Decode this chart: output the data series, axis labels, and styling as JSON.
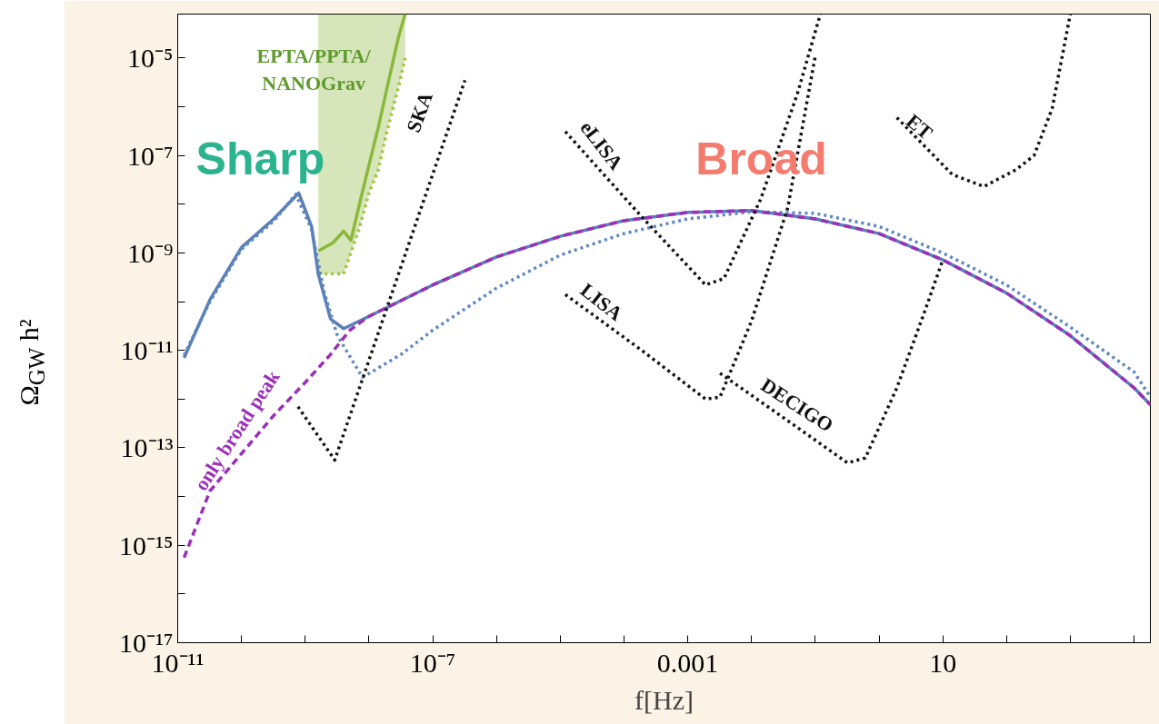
{
  "chart_data": {
    "type": "line",
    "xlabel": "f[Hz]",
    "ylabel": "Ω$_{GW}$ h²",
    "log": "xy",
    "grid": false,
    "xlim": [
      1e-11,
      18000.0
    ],
    "ylim": [
      1e-17,
      8e-05
    ],
    "xticks": [
      {
        "value": 1e-11,
        "label": "10⁻¹¹"
      },
      {
        "value": 1e-10,
        "label": null
      },
      {
        "value": 1e-09,
        "label": null
      },
      {
        "value": 1e-08,
        "label": null
      },
      {
        "value": 1e-07,
        "label": "10⁻⁷"
      },
      {
        "value": 1e-06,
        "label": null
      },
      {
        "value": 1e-05,
        "label": null
      },
      {
        "value": 0.0001,
        "label": null
      },
      {
        "value": 0.001,
        "label": "0.001"
      },
      {
        "value": 0.01,
        "label": null
      },
      {
        "value": 0.1,
        "label": null
      },
      {
        "value": 1,
        "label": null
      },
      {
        "value": 10,
        "label": "10"
      },
      {
        "value": 100,
        "label": null
      },
      {
        "value": 1000,
        "label": null
      },
      {
        "value": 10000,
        "label": null
      }
    ],
    "yticks": [
      {
        "value": 1e-17,
        "label": "10⁻¹⁷"
      },
      {
        "value": 1e-16,
        "label": null
      },
      {
        "value": 1e-15,
        "label": "10⁻¹⁵"
      },
      {
        "value": 1e-14,
        "label": null
      },
      {
        "value": 1e-13,
        "label": "10⁻¹³"
      },
      {
        "value": 1e-12,
        "label": null
      },
      {
        "value": 1e-11,
        "label": "10⁻¹¹"
      },
      {
        "value": 1e-10,
        "label": null
      },
      {
        "value": 1e-09,
        "label": "10⁻⁹"
      },
      {
        "value": 1e-08,
        "label": null
      },
      {
        "value": 1e-07,
        "label": "10⁻⁷"
      },
      {
        "value": 1e-06,
        "label": null
      },
      {
        "value": 1e-05,
        "label": "10⁻⁵"
      }
    ],
    "series": [
      {
        "color": "#a8c840",
        "line_style": "dotted",
        "x": [
          1.6e-09,
          2.7e-09,
          4e-09,
          5.2e-09,
          7.2e-09,
          1e-08,
          1.4e-08,
          1.9e-08,
          2.9e-08,
          3.7e-08
        ],
        "values": [
          3.7e-10,
          3.7e-10,
          3.7e-10,
          1e-09,
          3.5e-09,
          1.7e-08,
          5e-08,
          3e-07,
          2.5e-06,
          1e-05
        ]
      },
      {
        "name": "EPTA/PPTA/\nNANOGrav",
        "color": "#8ab83a",
        "line_style": "solid",
        "x": [
          1.6e-09,
          2.7e-09,
          4e-09,
          5.2e-09,
          7.2e-09,
          1e-08,
          1.4e-08,
          1.9e-08,
          2.9e-08,
          3.7e-08
        ],
        "values": [
          1.1e-09,
          1.6e-09,
          2.8e-09,
          1.8e-09,
          1.1e-08,
          6.4e-08,
          3.8e-07,
          2.3e-06,
          2.7e-05,
          8e-05
        ],
        "lower": [
          3.7e-10,
          3.7e-10,
          3.7e-10,
          1e-09,
          3.5e-09,
          1.7e-08,
          5e-08,
          3e-07,
          2.5e-06,
          1e-05
        ],
        "upper": [
          8e-05,
          8e-05,
          8e-05,
          8e-05,
          8e-05,
          8e-05,
          8e-05,
          8e-05,
          8e-05,
          8e-05
        ]
      },
      {
        "color": "#5b7fb5",
        "line_style": "solid",
        "x": [
          1.26e-11,
          3.2e-11,
          1e-10,
          3.2e-10,
          7.9e-10,
          1.26e-09,
          1.6e-09,
          2.5e-09,
          4e-09,
          1e-08,
          1e-07,
          1e-06,
          1e-05,
          0.0001,
          0.001,
          0.01,
          0.1,
          1,
          10,
          100,
          1000,
          10000.0,
          18000.0
        ],
        "values": [
          7e-12,
          1.1e-10,
          1.3e-09,
          5e-09,
          1.7e-08,
          3.5e-09,
          3.7e-10,
          4.4e-11,
          2.8e-11,
          5e-11,
          2.2e-10,
          8.3e-10,
          2.2e-09,
          4.6e-09,
          6.8e-09,
          7.4e-09,
          5e-09,
          2.5e-09,
          7.2e-10,
          1.5e-10,
          2e-11,
          1.7e-12,
          7.7e-13
        ]
      },
      {
        "color": "#5b86c0",
        "line_style": "dotted",
        "x": [
          1.26e-11,
          3.2e-11,
          1e-10,
          3.2e-10,
          7.1e-10,
          1.26e-09,
          2e-09,
          3.2e-09,
          7.9e-09,
          3.2e-08,
          1e-07,
          1e-06,
          1e-05,
          0.0001,
          0.001,
          0.01,
          0.1,
          1,
          10,
          100,
          1000,
          10000.0,
          18000.0
        ],
        "values": [
          8e-12,
          1e-10,
          1.2e-09,
          4.5e-09,
          1.6e-08,
          3e-09,
          1.5e-10,
          2e-11,
          2.8e-12,
          8.3e-12,
          2.6e-11,
          1.9e-10,
          9e-10,
          2.5e-09,
          5e-09,
          7e-09,
          6.5e-09,
          3.5e-09,
          1e-09,
          2.2e-10,
          3e-11,
          3.6e-12,
          1.1e-12
        ]
      },
      {
        "name": "only broad peak",
        "color": "#9b30b8",
        "line_style": "dashed",
        "x": [
          1.26e-11,
          3.2e-11,
          1e-10,
          3.2e-10,
          1e-09,
          2.5e-09,
          5e-09,
          1e-08,
          1e-07,
          1e-06,
          1e-05,
          0.0001,
          0.001,
          0.01,
          0.1,
          1,
          10,
          100,
          1000,
          10000.0,
          18000.0
        ],
        "values": [
          5.6e-16,
          1.3e-14,
          7.6e-14,
          4.6e-13,
          2.2e-12,
          8.3e-12,
          2.6e-11,
          5e-11,
          2.2e-10,
          8.3e-10,
          2.2e-09,
          4.6e-09,
          6.8e-09,
          7.4e-09,
          5e-09,
          2.5e-09,
          7.2e-10,
          1.5e-10,
          2e-11,
          1.7e-12,
          7.7e-13
        ]
      },
      {
        "name": "SKA",
        "color": "#111111",
        "line_style": "dotted",
        "x": [
          7.7e-10,
          2.9e-09,
          3.2e-07
        ],
        "values": [
          7e-13,
          5.6e-14,
          3.5e-06
        ]
      },
      {
        "name": "eLISA",
        "color": "#111111",
        "line_style": "dotted",
        "x": [
          1.2e-05,
          0.00019,
          0.0019,
          0.0037,
          0.014,
          0.052,
          0.12
        ],
        "values": [
          3.1e-07,
          5.5e-09,
          2.2e-10,
          3e-10,
          1.3e-08,
          1.8e-06,
          8e-05
        ]
      },
      {
        "name": "LISA",
        "color": "#111111",
        "line_style": "dotted",
        "x": [
          1.2e-05,
          0.00019,
          0.0019,
          0.0032,
          0.01,
          0.037,
          0.1
        ],
        "values": [
          1.4e-10,
          1e-11,
          1e-12,
          1.1e-12,
          4e-11,
          8.5e-09,
          1.1e-05
        ]
      },
      {
        "name": "DECIGO",
        "color": "#111111",
        "line_style": "dotted",
        "x": [
          0.0032,
          0.037,
          0.32,
          0.61,
          1.9,
          5.2,
          10
        ],
        "values": [
          3.4e-12,
          3.6e-13,
          4.9e-14,
          6.2e-14,
          1.7e-12,
          6.3e-11,
          7.2e-10
        ]
      },
      {
        "name": "ET",
        "color": "#111111",
        "line_style": "dotted",
        "x": [
          1.9,
          14,
          44,
          140,
          270,
          520,
          1000
        ],
        "values": [
          6e-07,
          4.1e-08,
          2.3e-08,
          5.1e-08,
          1e-07,
          9.3e-07,
          8e-05
        ]
      }
    ],
    "annotations": [
      "Sharp",
      "Broad"
    ]
  }
}
